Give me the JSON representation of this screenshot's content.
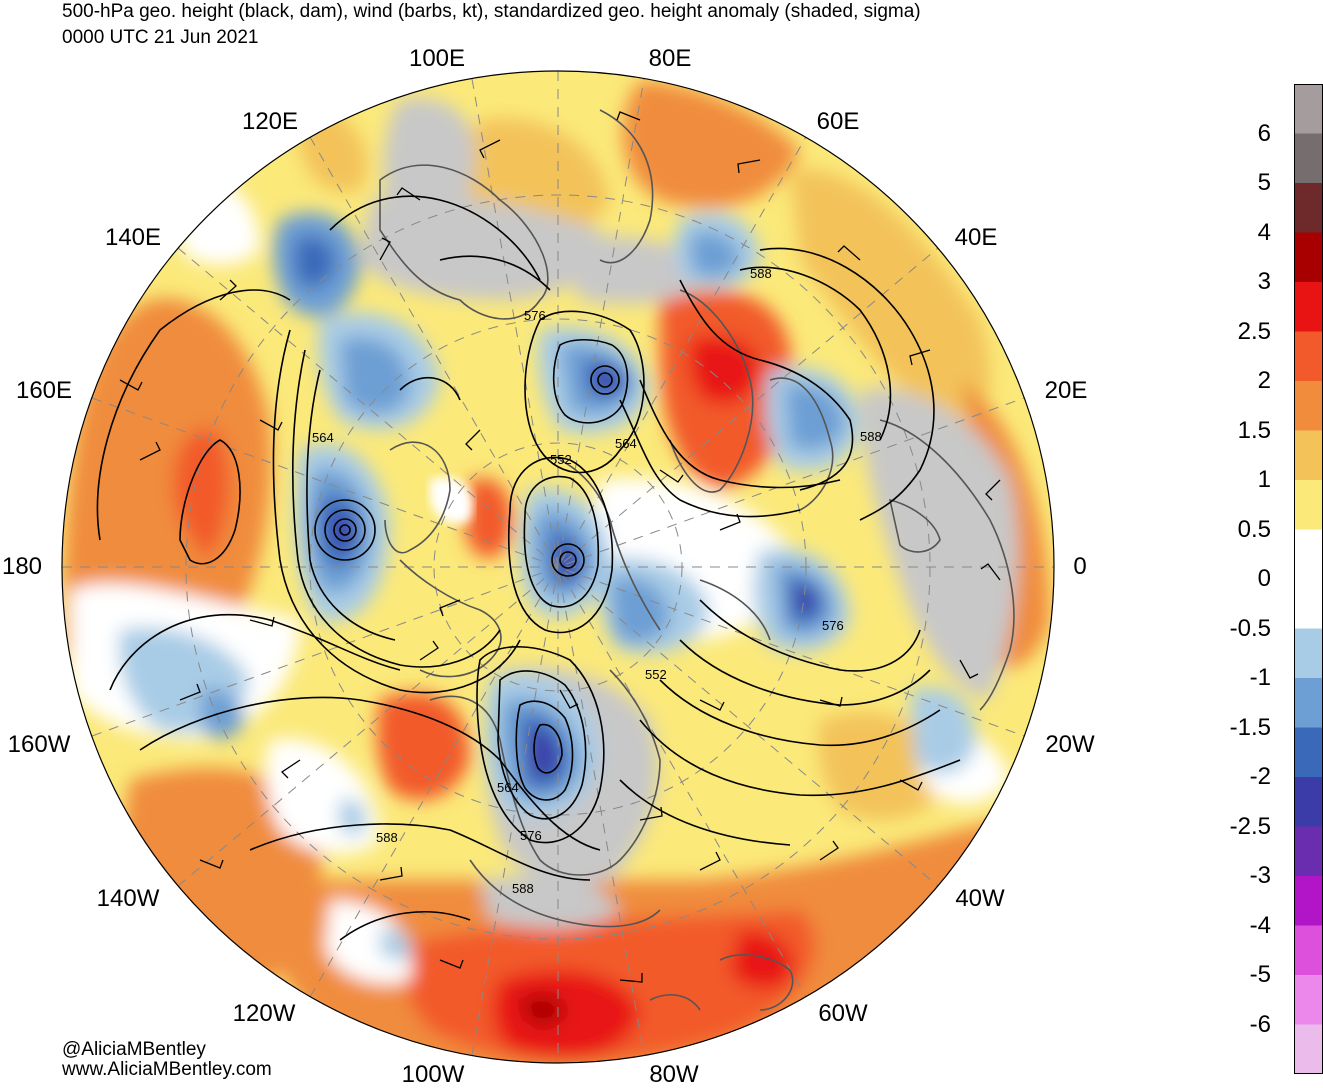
{
  "title": {
    "line1": "500-hPa geo. height (black, dam), wind (barbs, kt), standardized geo. height anomaly (shaded, sigma)",
    "line2": "0000 UTC 21 Jun 2021"
  },
  "longitude_labels": [
    "100E",
    "80E",
    "120E",
    "60E",
    "140E",
    "40E",
    "160E",
    "20E",
    "180",
    "0",
    "160W",
    "20W",
    "140W",
    "40W",
    "120W",
    "60W",
    "100W",
    "80W"
  ],
  "height_contour_labels": [
    "588",
    "576",
    "564",
    "552",
    "564",
    "564",
    "552",
    "576",
    "552",
    "564",
    "576",
    "588",
    "588",
    "588"
  ],
  "credits": {
    "line1": "@AliciaMBentley",
    "line2": "www.AliciaMBentley.com"
  },
  "colorbar": {
    "labels": [
      "6",
      "5",
      "4",
      "3",
      "2.5",
      "2",
      "1.5",
      "1",
      "0.5",
      "0",
      "-0.5",
      "-1",
      "-1.5",
      "-2",
      "-2.5",
      "-3",
      "-4",
      "-5",
      "-6"
    ],
    "colors": [
      "#a59d9d",
      "#766e6e",
      "#6e2a2a",
      "#a80000",
      "#e81414",
      "#f25a2c",
      "#f08c3c",
      "#f3c35a",
      "#fbe97a",
      "#ffffff",
      "#ffffff",
      "#a9cce6",
      "#6d9fd4",
      "#3a69ba",
      "#3c3ca8",
      "#6b2db0",
      "#b214c8",
      "#dc50dc",
      "#ec88ec",
      "#ebbbeb"
    ]
  },
  "colors": {
    "land_neutral": "#c8c8c8",
    "contour": "#000000",
    "grid": "#888888"
  }
}
